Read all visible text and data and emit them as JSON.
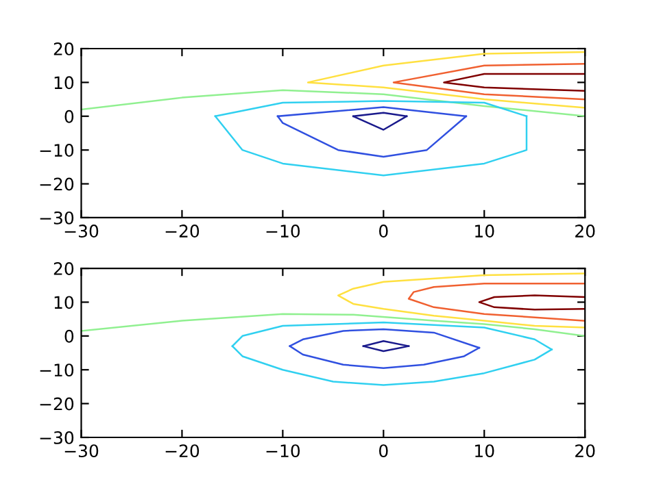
{
  "chart_data": [
    {
      "type": "line",
      "xlim": [
        -30,
        20
      ],
      "ylim": [
        -30,
        20
      ],
      "xticks": [
        -30,
        -20,
        -10,
        0,
        10,
        20
      ],
      "yticks": [
        -30,
        -20,
        -10,
        0,
        10,
        20
      ],
      "grid": false,
      "legend": false,
      "marker": "none",
      "line_style": "solid",
      "series": [
        {
          "color": "#90f090",
          "x": [
            -30,
            -20,
            -10,
            0,
            10,
            20
          ],
          "values": [
            2,
            5.5,
            7.7,
            6.5,
            3,
            0
          ]
        },
        {
          "color": "#ffe040",
          "x": [
            20,
            10,
            0,
            -7.5,
            0,
            10,
            20
          ],
          "values": [
            19,
            18.5,
            15,
            10,
            8.5,
            5,
            2.5
          ]
        },
        {
          "color": "#f06030",
          "x": [
            20,
            10,
            1,
            10,
            20
          ],
          "values": [
            15.5,
            15,
            10,
            6.5,
            5
          ]
        },
        {
          "color": "#800000",
          "x": [
            20,
            10,
            6,
            10,
            20
          ],
          "values": [
            12.5,
            12.5,
            10,
            8.5,
            7.5
          ]
        },
        {
          "color": "#30d0f0",
          "x": [
            -16.7,
            -10,
            0,
            10,
            14.2
          ],
          "values": [
            0,
            4,
            4.5,
            4,
            0
          ]
        },
        {
          "color": "#30d0f0",
          "x": [
            -16.7,
            -14,
            -10,
            0,
            10,
            14.2,
            14.2
          ],
          "values": [
            0,
            -10,
            -14,
            -17.5,
            -14,
            -10,
            0
          ]
        },
        {
          "color": "#3050e0",
          "x": [
            -10.5,
            0,
            8.2
          ],
          "values": [
            0,
            2.7,
            0
          ]
        },
        {
          "color": "#3050e0",
          "x": [
            -10.5,
            -10,
            -4.5,
            0,
            4.3,
            8.2
          ],
          "values": [
            0,
            -2,
            -10,
            -12,
            -10,
            0
          ]
        },
        {
          "color": "#1a1a8c",
          "x": [
            -3,
            0,
            2.3
          ],
          "values": [
            0,
            1,
            0
          ]
        },
        {
          "color": "#1a1a8c",
          "x": [
            -3,
            0,
            2.3
          ],
          "values": [
            0,
            -4,
            0
          ]
        }
      ]
    },
    {
      "type": "line",
      "xlim": [
        -30,
        20
      ],
      "ylim": [
        -30,
        20
      ],
      "xticks": [
        -30,
        -20,
        -10,
        0,
        10,
        20
      ],
      "yticks": [
        -30,
        -20,
        -10,
        0,
        10,
        20
      ],
      "grid": false,
      "legend": false,
      "marker": "none",
      "line_style": "solid",
      "series": [
        {
          "color": "#90f090",
          "x": [
            -30,
            -20,
            -10,
            -3,
            5,
            10,
            15,
            20
          ],
          "values": [
            1.5,
            4.5,
            6.5,
            6.3,
            4.5,
            3.5,
            2,
            0
          ]
        },
        {
          "color": "#ffe040",
          "x": [
            20,
            10,
            0,
            -3,
            -4.5,
            -3,
            0,
            5,
            10,
            15,
            20
          ],
          "values": [
            18.5,
            18,
            16,
            14,
            12,
            9.5,
            8,
            6,
            4.5,
            3,
            2.5
          ]
        },
        {
          "color": "#f06030",
          "x": [
            20,
            10,
            5,
            3,
            2.5,
            5,
            10,
            20
          ],
          "values": [
            15.5,
            15.5,
            14.5,
            13,
            11,
            8.5,
            6.5,
            4.5
          ]
        },
        {
          "color": "#800000",
          "x": [
            20,
            15,
            11,
            9.5,
            11,
            15,
            20
          ],
          "values": [
            11.5,
            12,
            11.5,
            10,
            8.5,
            7.8,
            8
          ]
        },
        {
          "color": "#30d0f0",
          "x": [
            -15,
            -14,
            -10,
            0,
            10,
            15,
            16.7
          ],
          "values": [
            -3,
            0,
            3,
            4,
            2.5,
            -1,
            -4
          ]
        },
        {
          "color": "#30d0f0",
          "x": [
            -15,
            -14,
            -10,
            -5,
            0,
            5,
            10,
            15,
            16.7
          ],
          "values": [
            -3,
            -6,
            -10,
            -13.5,
            -14.5,
            -13.5,
            -11,
            -7,
            -4
          ]
        },
        {
          "color": "#3050e0",
          "x": [
            -9.3,
            -8,
            -4,
            0,
            5,
            9.5
          ],
          "values": [
            -3,
            -1,
            1.5,
            2,
            1,
            -3.5
          ]
        },
        {
          "color": "#3050e0",
          "x": [
            -9.3,
            -8,
            -4,
            0,
            4,
            8,
            9.5
          ],
          "values": [
            -3,
            -5.5,
            -8.5,
            -9.5,
            -8.5,
            -6,
            -3.5
          ]
        },
        {
          "color": "#1a1a8c",
          "x": [
            -2,
            0,
            2.5
          ],
          "values": [
            -3,
            -1.5,
            -3
          ]
        },
        {
          "color": "#1a1a8c",
          "x": [
            -2,
            0,
            2.5
          ],
          "values": [
            -3,
            -4.5,
            -3
          ]
        }
      ]
    }
  ]
}
